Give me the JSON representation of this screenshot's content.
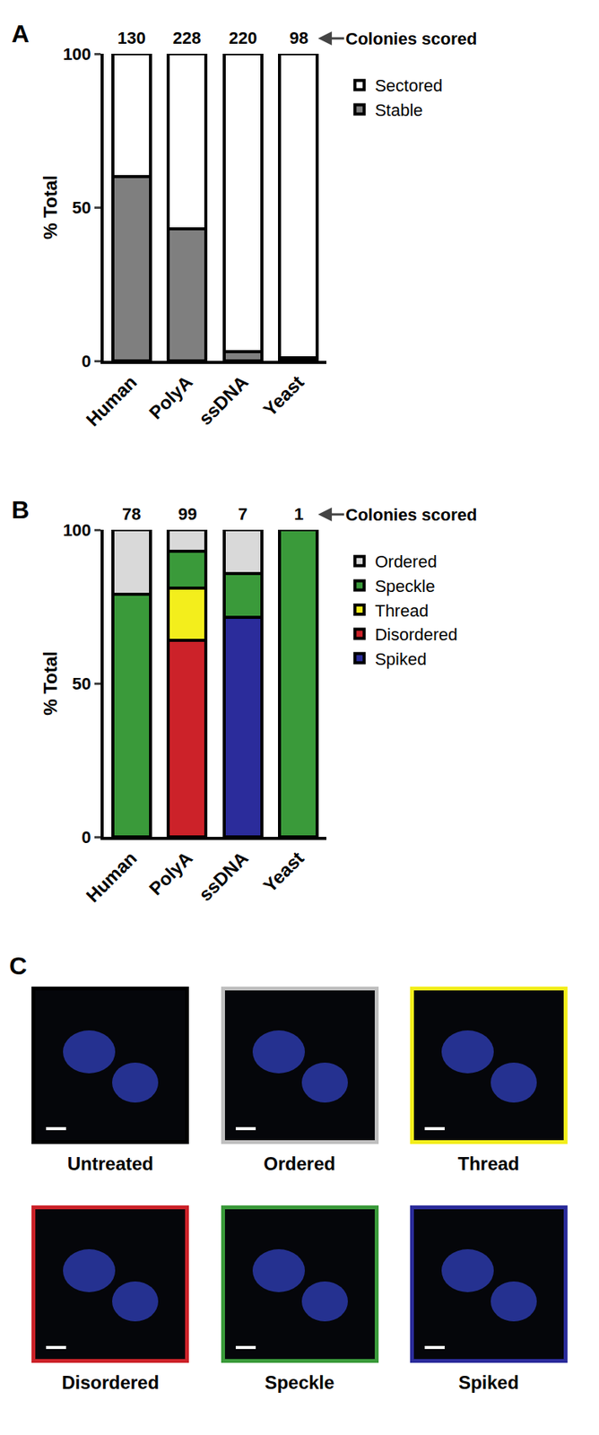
{
  "chart_data": [
    {
      "panel": "A",
      "type": "bar",
      "stacked": true,
      "categories": [
        "Human",
        "PolyA",
        "ssDNA",
        "Yeast"
      ],
      "series": [
        {
          "name": "Stable",
          "color": "#7f7f7f",
          "values": [
            60,
            43,
            3,
            1
          ]
        },
        {
          "name": "Sectored",
          "color": "#ffffff",
          "values": [
            40,
            57,
            97,
            99
          ]
        }
      ],
      "y_label": "% Total",
      "ylim": [
        0,
        100
      ],
      "yticks": [
        0,
        50,
        100
      ],
      "legend": "top right",
      "colonies_scored": [
        130,
        228,
        220,
        98
      ],
      "annotation": "Colonies scored"
    },
    {
      "panel": "B",
      "type": "bar",
      "stacked": true,
      "categories": [
        "Human",
        "PolyA",
        "ssDNA",
        "Yeast"
      ],
      "series": [
        {
          "name": "Spiked",
          "color": "#2b2c9b",
          "values": [
            0,
            0,
            71.4,
            0
          ]
        },
        {
          "name": "Disordered",
          "color": "#cc2229",
          "values": [
            0,
            64,
            0,
            0
          ]
        },
        {
          "name": "Thread",
          "color": "#f3ee1c",
          "values": [
            0,
            17,
            0,
            0
          ]
        },
        {
          "name": "Speckle",
          "color": "#3a9a3a",
          "values": [
            79,
            12,
            14.3,
            100
          ]
        },
        {
          "name": "Ordered",
          "color": "#d9d9d9",
          "values": [
            21,
            7,
            14.3,
            0
          ]
        }
      ],
      "y_label": "% Total",
      "ylim": [
        0,
        100
      ],
      "yticks": [
        0,
        50,
        100
      ],
      "legend": "top right",
      "colonies_scored": [
        78,
        99,
        7,
        1
      ],
      "annotation": "Colonies scored"
    }
  ],
  "image_panel": {
    "panel": "C",
    "images": [
      {
        "label": "Untreated",
        "color": "#000000"
      },
      {
        "label": "Ordered",
        "color": "#bfbfbf"
      },
      {
        "label": "Thread",
        "color": "#f3ee1c"
      },
      {
        "label": "Disordered",
        "color": "#cc2229"
      },
      {
        "label": "Speckle",
        "color": "#3a9a3a"
      },
      {
        "label": "Spiked",
        "color": "#2b2c9b"
      }
    ]
  }
}
